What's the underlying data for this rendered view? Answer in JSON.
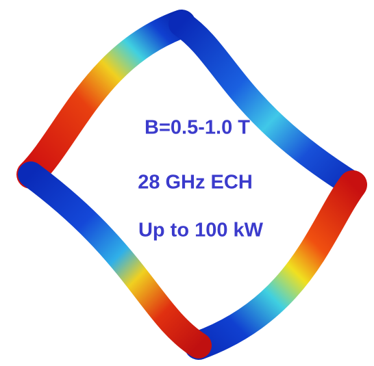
{
  "labels": {
    "field": "B=0.5-1.0 T",
    "heating": "28 GHz ECH",
    "power": "Up to 100 kW"
  }
}
